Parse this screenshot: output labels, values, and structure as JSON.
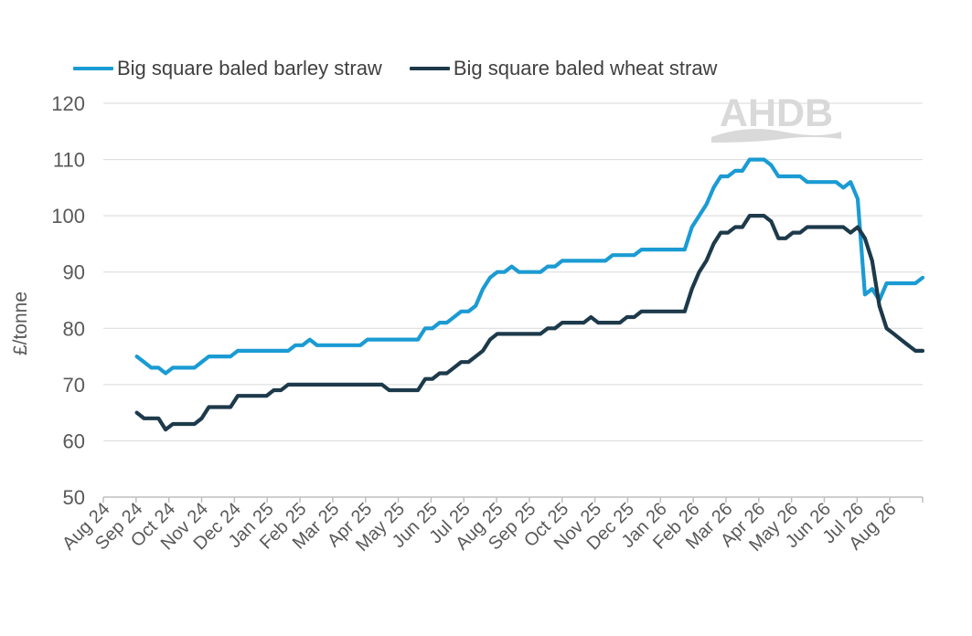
{
  "legend": {
    "barley": "Big square baled barley straw",
    "wheat": "Big square baled wheat straw"
  },
  "logo_text": "AHDB",
  "colors": {
    "barley": "#1b9bd3",
    "wheat": "#1d3a4b",
    "grid": "#d9d9d9",
    "axis": "#bfbfbf",
    "text": "#595959"
  },
  "chart_data": {
    "type": "line",
    "title": "",
    "xlabel": "",
    "ylabel": "£/tonne",
    "ylim": [
      50,
      120
    ],
    "yticks": [
      50,
      60,
      70,
      80,
      90,
      100,
      110,
      120
    ],
    "xtick_labels": [
      "Aug 24",
      "Sep 24",
      "Oct 24",
      "Nov 24",
      "Dec 24",
      "Jan 25",
      "Feb 25",
      "Mar 25",
      "Apr 25",
      "May 25",
      "Jun 25",
      "Jul 25",
      "Aug 25",
      "Sep 25",
      "Oct 25",
      "Nov 25",
      "Dec 25",
      "Jan 26",
      "Feb 26",
      "Mar 26",
      "Apr 26",
      "May 26",
      "Jun 26",
      "Jul 26",
      "Aug 26"
    ],
    "grid": true,
    "legend_position": "top-left",
    "series": [
      {
        "name": "Big square baled barley straw",
        "color": "#1b9bd3",
        "values": [
          75,
          74,
          73,
          73,
          72,
          73,
          73,
          73,
          73,
          74,
          75,
          75,
          75,
          75,
          76,
          76,
          76,
          76,
          76,
          76,
          76,
          76,
          77,
          77,
          78,
          77,
          77,
          77,
          77,
          77,
          77,
          77,
          78,
          78,
          78,
          78,
          78,
          78,
          78,
          78,
          80,
          80,
          81,
          81,
          82,
          83,
          83,
          84,
          87,
          89,
          90,
          90,
          91,
          90,
          90,
          90,
          90,
          91,
          91,
          92,
          92,
          92,
          92,
          92,
          92,
          92,
          93,
          93,
          93,
          93,
          94,
          94,
          94,
          94,
          94,
          94,
          94,
          98,
          100,
          102,
          105,
          107,
          107,
          108,
          108,
          110,
          110,
          110,
          109,
          107,
          107,
          107,
          107,
          106,
          106,
          106,
          106,
          106,
          105,
          106,
          103,
          86,
          87,
          85,
          88,
          88,
          88,
          88,
          88,
          89
        ]
      },
      {
        "name": "Big square baled wheat straw",
        "color": "#1d3a4b",
        "values": [
          65,
          64,
          64,
          64,
          62,
          63,
          63,
          63,
          63,
          64,
          66,
          66,
          66,
          66,
          68,
          68,
          68,
          68,
          68,
          69,
          69,
          70,
          70,
          70,
          70,
          70,
          70,
          70,
          70,
          70,
          70,
          70,
          70,
          70,
          70,
          69,
          69,
          69,
          69,
          69,
          71,
          71,
          72,
          72,
          73,
          74,
          74,
          75,
          76,
          78,
          79,
          79,
          79,
          79,
          79,
          79,
          79,
          80,
          80,
          81,
          81,
          81,
          81,
          82,
          81,
          81,
          81,
          81,
          82,
          82,
          83,
          83,
          83,
          83,
          83,
          83,
          83,
          87,
          90,
          92,
          95,
          97,
          97,
          98,
          98,
          100,
          100,
          100,
          99,
          96,
          96,
          97,
          97,
          98,
          98,
          98,
          98,
          98,
          98,
          97,
          98,
          96,
          92,
          84,
          80,
          79,
          78,
          77,
          76,
          76
        ]
      }
    ]
  }
}
